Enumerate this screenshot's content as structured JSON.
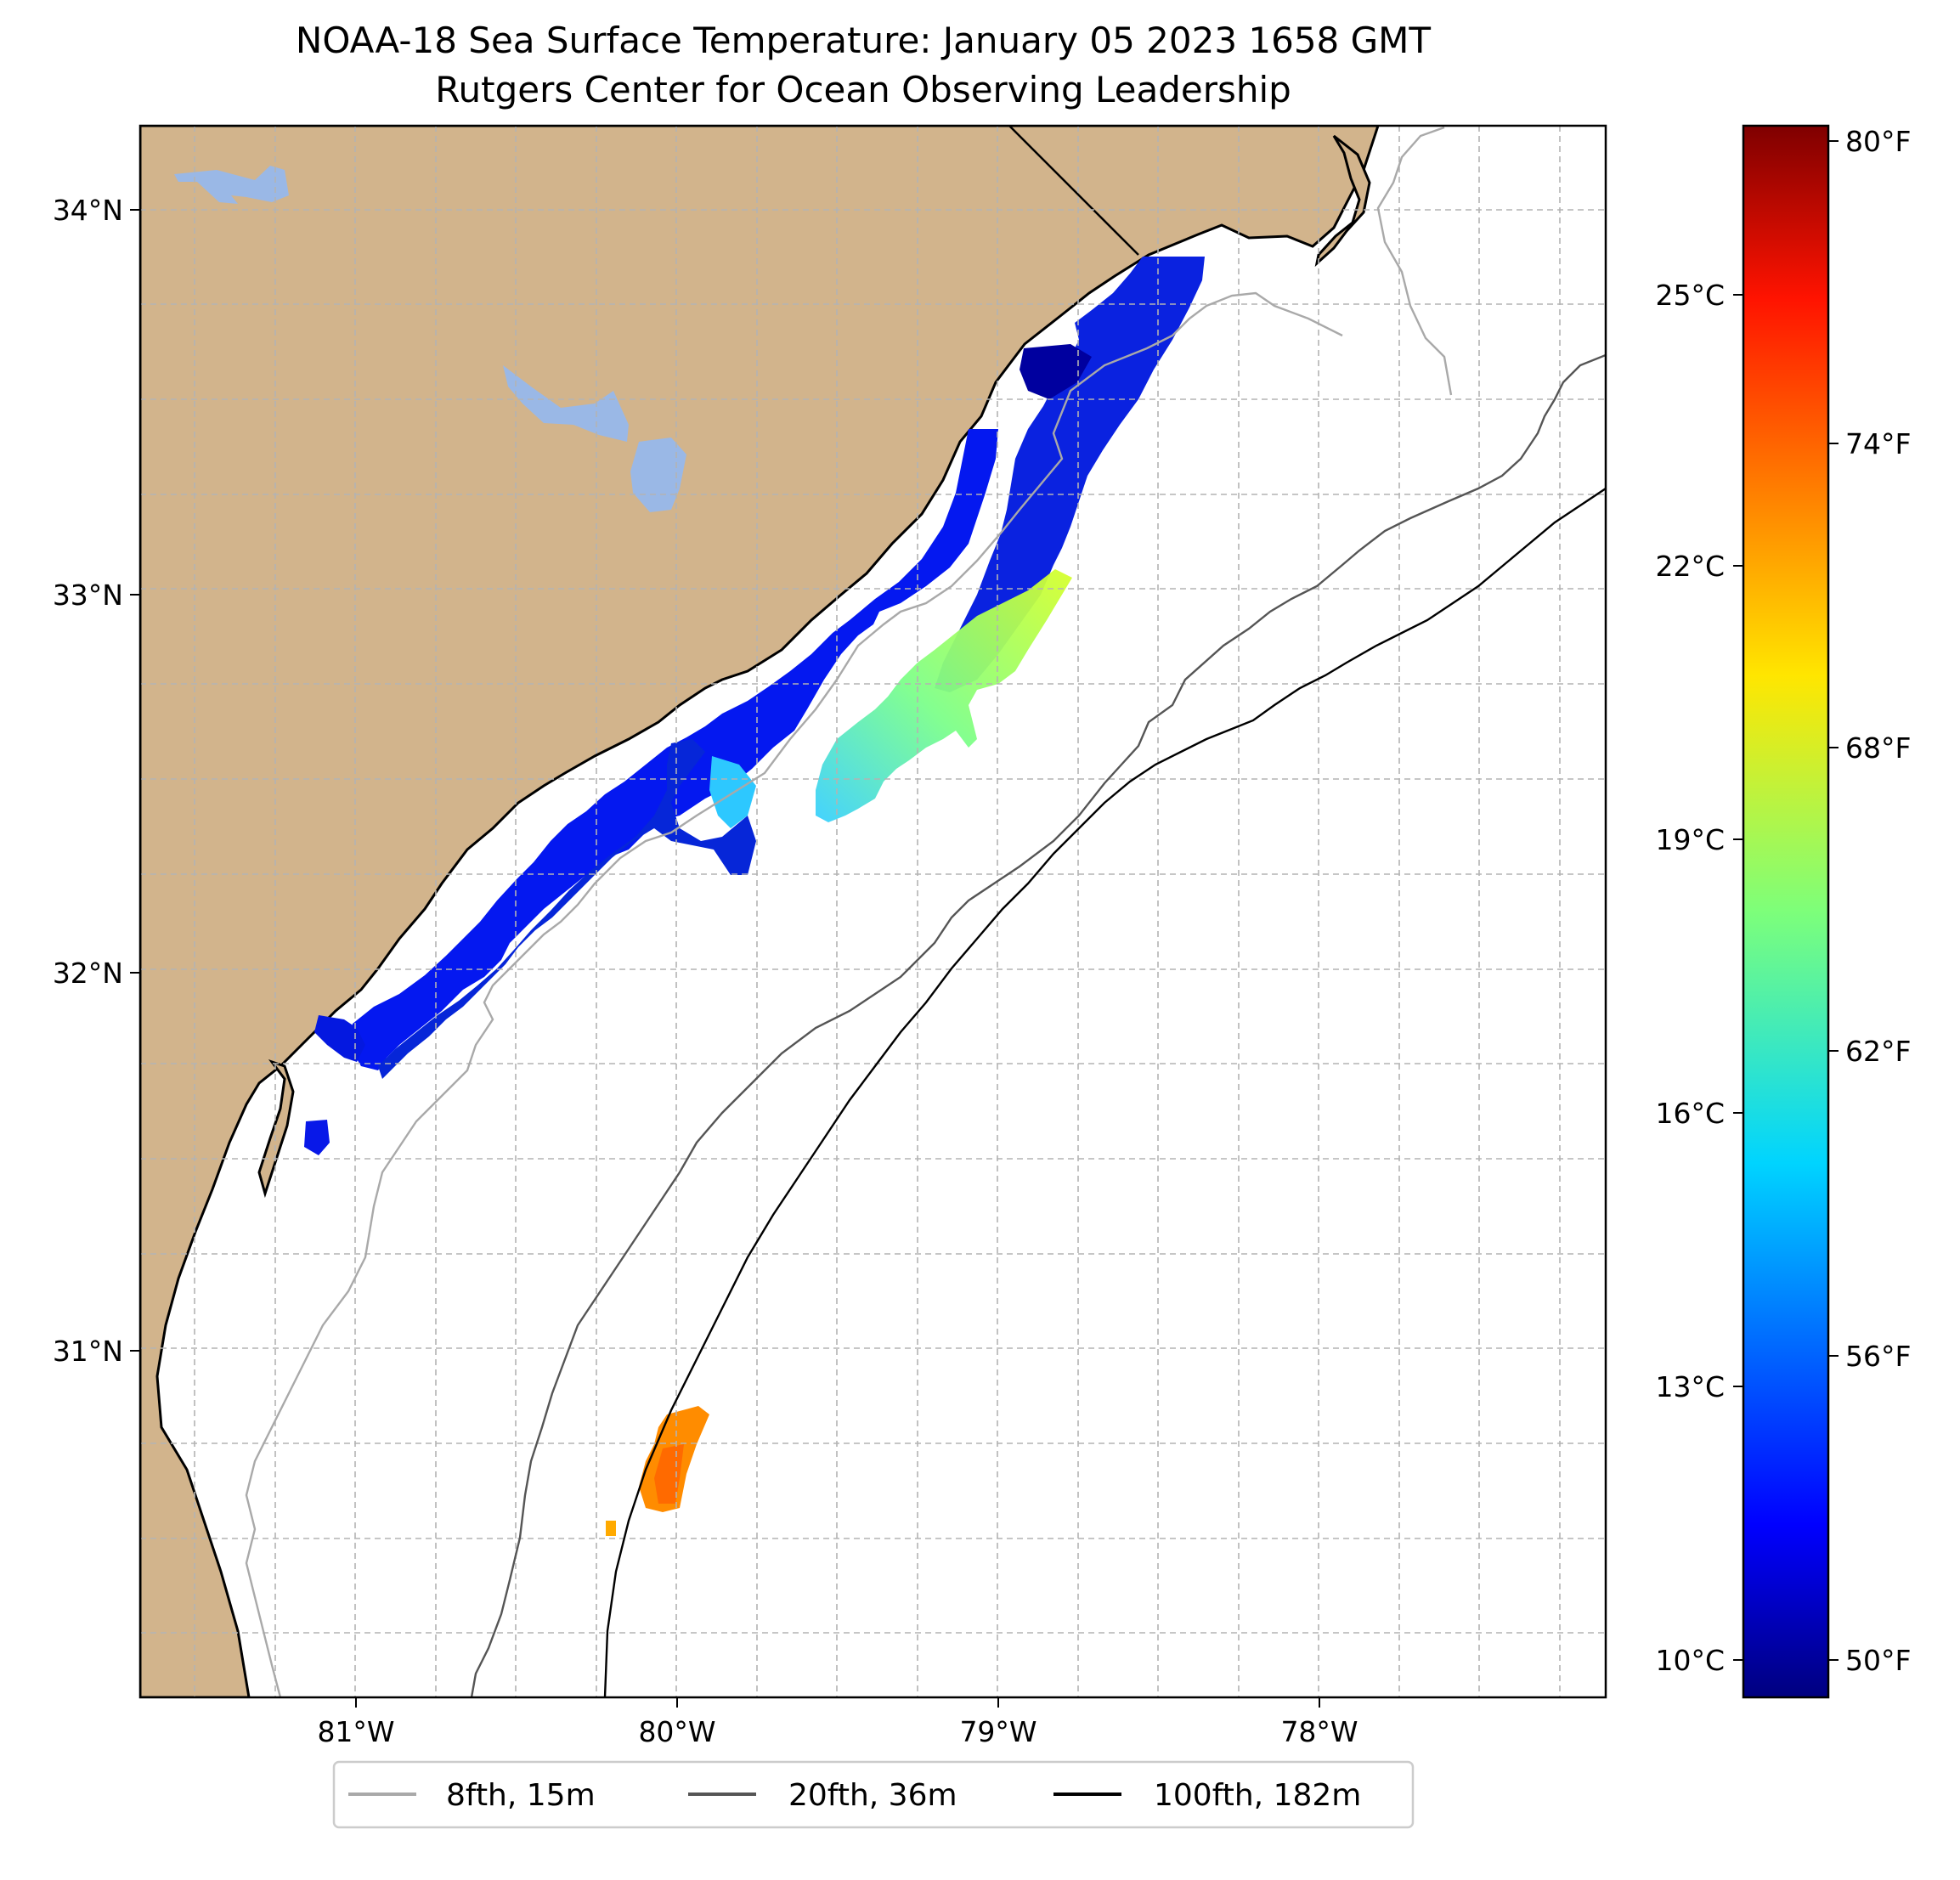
{
  "map": {
    "title_line1": "NOAA-18 Sea Surface Temperature: January 05 2023 1658 GMT",
    "title_line2": "Rutgers Center for Ocean Observing Leadership",
    "land_color": "#d2b48c",
    "water_color": "#9ab8e6",
    "lat_labels": [
      "34°N",
      "33°N",
      "32°N",
      "31°N"
    ],
    "lon_labels": [
      "81°W",
      "80°W",
      "79°W",
      "78°W"
    ]
  },
  "colorbar": {
    "celsius_labels": [
      "25°C",
      "22°C",
      "19°C",
      "16°C",
      "13°C",
      "10°C"
    ],
    "fahrenheit_labels": [
      "80°F",
      "74°F",
      "68°F",
      "62°F",
      "56°F",
      "50°F"
    ],
    "colormap": "jet"
  },
  "legend": {
    "items": [
      {
        "label": "8fth, 15m",
        "color": "#a9a9a9"
      },
      {
        "label": "20fth, 36m",
        "color": "#555555"
      },
      {
        "label": "100fth, 182m",
        "color": "#000000"
      }
    ]
  }
}
